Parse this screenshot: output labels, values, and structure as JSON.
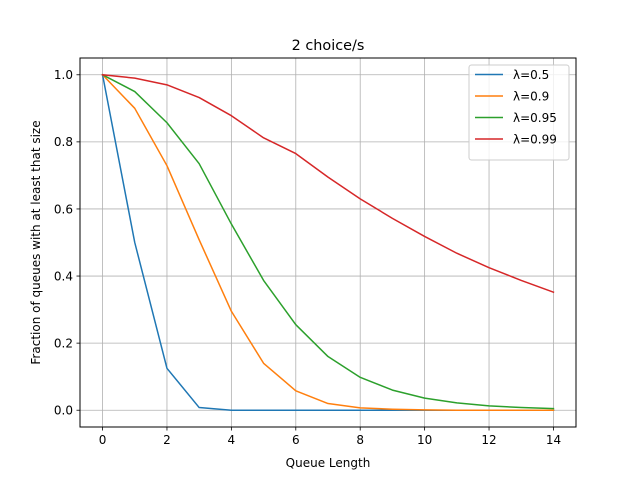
{
  "chart_data": {
    "type": "line",
    "title": "2 choice/s",
    "xlabel": "Queue Length",
    "ylabel": "Fraction of queues with at least that size",
    "xlim": [
      -0.7,
      14.7
    ],
    "ylim": [
      -0.05,
      1.05
    ],
    "xticks": [
      0,
      2,
      4,
      6,
      8,
      10,
      12,
      14
    ],
    "yticks": [
      0.0,
      0.2,
      0.4,
      0.6,
      0.8,
      1.0
    ],
    "xtick_labels": [
      "0",
      "2",
      "4",
      "6",
      "8",
      "10",
      "12",
      "14"
    ],
    "ytick_labels": [
      "0.0",
      "0.2",
      "0.4",
      "0.6",
      "0.8",
      "1.0"
    ],
    "grid": true,
    "legend_position": "top-right",
    "x": [
      0,
      1,
      2,
      3,
      4,
      5,
      6,
      7,
      8,
      9,
      10,
      11,
      12,
      13,
      14
    ],
    "series": [
      {
        "name": "λ=0.5",
        "color": "#1f77b4",
        "values": [
          1.0,
          0.5,
          0.125,
          0.008,
          0.0,
          0.0,
          0.0,
          0.0,
          0.0,
          0.0,
          0.0,
          0.0,
          0.0,
          0.0,
          0.0
        ]
      },
      {
        "name": "λ=0.9",
        "color": "#ff7f0e",
        "values": [
          1.0,
          0.9,
          0.729,
          0.508,
          0.295,
          0.14,
          0.058,
          0.02,
          0.007,
          0.003,
          0.001,
          0.0,
          0.0,
          0.0,
          0.0
        ]
      },
      {
        "name": "λ=0.95",
        "color": "#2ca02c",
        "values": [
          1.0,
          0.95,
          0.857,
          0.735,
          0.555,
          0.387,
          0.255,
          0.16,
          0.098,
          0.06,
          0.036,
          0.022,
          0.013,
          0.008,
          0.005
        ]
      },
      {
        "name": "λ=0.99",
        "color": "#d62728",
        "values": [
          1.0,
          0.99,
          0.97,
          0.932,
          0.878,
          0.812,
          0.765,
          0.695,
          0.63,
          0.572,
          0.518,
          0.468,
          0.425,
          0.387,
          0.352
        ]
      }
    ]
  }
}
